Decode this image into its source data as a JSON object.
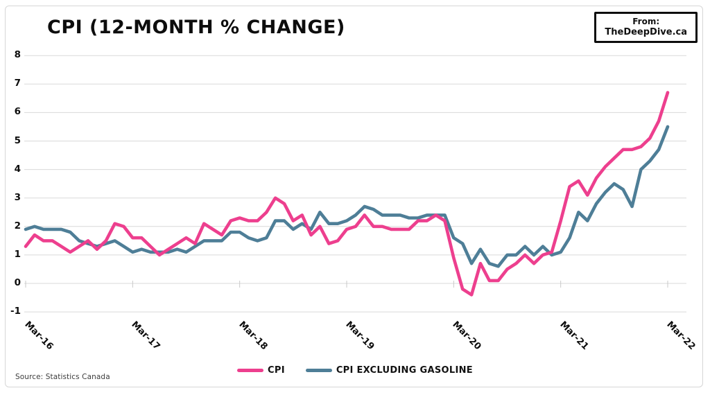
{
  "page": {
    "title": "CPI (12-MONTH % CHANGE)",
    "badge": {
      "line1": "From:",
      "line2": "TheDeepDive.ca"
    },
    "source": "Source: Statistics Canada"
  },
  "chart_data": {
    "type": "line",
    "title": "CPI (12-month % change)",
    "frequency": "monthly",
    "x_range": "Mar-2016 to Mar-2022",
    "x_tick_labels": [
      "Mar-16",
      "Mar-17",
      "Mar-18",
      "Mar-19",
      "Mar-20",
      "Mar-21",
      "Mar-22"
    ],
    "y_ticks": [
      8,
      7,
      6,
      5,
      4,
      3,
      2,
      1,
      0,
      -1
    ],
    "ylim": [
      -1,
      8
    ],
    "grid": "horizontal",
    "legend_position": "bottom-center",
    "colors": {
      "cpi": "#ED3F8E",
      "cpi_ex_gasoline": "#4E7E97",
      "gridline": "#d9d9d9"
    },
    "series": [
      {
        "name": "CPI",
        "color": "#ED3F8E",
        "values": [
          1.3,
          1.7,
          1.5,
          1.5,
          1.3,
          1.1,
          1.3,
          1.5,
          1.2,
          1.5,
          2.1,
          2.0,
          1.6,
          1.6,
          1.3,
          1.0,
          1.2,
          1.4,
          1.6,
          1.4,
          2.1,
          1.9,
          1.7,
          2.2,
          2.3,
          2.2,
          2.2,
          2.5,
          3.0,
          2.8,
          2.2,
          2.4,
          1.7,
          2.0,
          1.4,
          1.5,
          1.9,
          2.0,
          2.4,
          2.0,
          2.0,
          1.9,
          1.9,
          1.9,
          2.2,
          2.2,
          2.4,
          2.2,
          0.9,
          -0.2,
          -0.4,
          0.7,
          0.1,
          0.1,
          0.5,
          0.7,
          1.0,
          0.7,
          1.0,
          1.1,
          2.2,
          3.4,
          3.6,
          3.1,
          3.7,
          4.1,
          4.4,
          4.7,
          4.7,
          4.8,
          5.1,
          5.7,
          6.7
        ]
      },
      {
        "name": "CPI EXCLUDING GASOLINE",
        "color": "#4E7E97",
        "values": [
          1.9,
          2.0,
          1.9,
          1.9,
          1.9,
          1.8,
          1.5,
          1.4,
          1.3,
          1.4,
          1.5,
          1.3,
          1.1,
          1.2,
          1.1,
          1.1,
          1.1,
          1.2,
          1.1,
          1.3,
          1.5,
          1.5,
          1.5,
          1.8,
          1.8,
          1.6,
          1.5,
          1.6,
          2.2,
          2.2,
          1.9,
          2.1,
          1.9,
          2.5,
          2.1,
          2.1,
          2.2,
          2.4,
          2.7,
          2.6,
          2.4,
          2.4,
          2.4,
          2.3,
          2.3,
          2.4,
          2.4,
          2.4,
          1.6,
          1.4,
          0.7,
          1.2,
          0.7,
          0.6,
          1.0,
          1.0,
          1.3,
          1.0,
          1.3,
          1.0,
          1.1,
          1.6,
          2.5,
          2.2,
          2.8,
          3.2,
          3.5,
          3.3,
          2.7,
          4.0,
          4.3,
          4.7,
          5.5
        ]
      }
    ]
  }
}
